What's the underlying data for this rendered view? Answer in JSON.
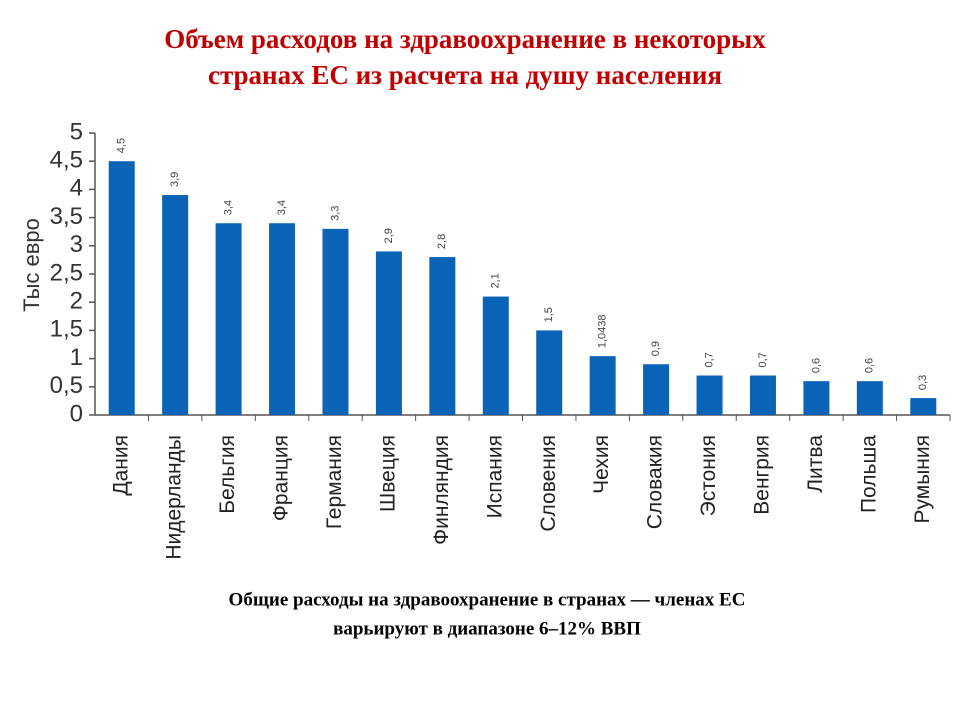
{
  "chart_data": {
    "type": "bar",
    "title": [
      "Объем расходов на здравоохранение в некоторых",
      "странах ЕС из расчета на душу населения"
    ],
    "y_label": "Тыс евро",
    "footnote": [
      "Общие расходы на здравоохранение в странах — членах ЕС",
      "варьируют в диапазоне 6–12% ВВП"
    ],
    "categories": [
      "Дания",
      "Нидерланды",
      "Бельгия",
      "Франция",
      "Германия",
      "Швеция",
      "Финляндия",
      "Испания",
      "Словения",
      "Чехия",
      "Словакия",
      "Эстония",
      "Венгрия",
      "Литва",
      "Польша",
      "Румыния"
    ],
    "values": [
      4.5,
      3.9,
      3.4,
      3.4,
      3.3,
      2.9,
      2.8,
      2.1,
      1.5,
      1.0438,
      0.9,
      0.7,
      0.7,
      0.6,
      0.6,
      0.3
    ],
    "value_labels": [
      "4,5",
      "3,9",
      "3,4",
      "3,4",
      "3,3",
      "2,9",
      "2,8",
      "2,1",
      "1,5",
      "1,0438",
      "0,9",
      "0,7",
      "0,7",
      "0,6",
      "0,6",
      "0,3"
    ],
    "color": "#0b63b8",
    "ylim": [
      0,
      5
    ],
    "yticks": [
      0,
      {
        "value": 0.5,
        "label": "0,5"
      },
      1,
      {
        "value": 1.5,
        "label": "1,5"
      },
      2,
      {
        "value": 2.5,
        "label": "2,5"
      },
      3,
      {
        "value": 3.5,
        "label": "3,5"
      },
      4,
      {
        "value": 4.5,
        "label": "4,5"
      },
      5
    ]
  }
}
